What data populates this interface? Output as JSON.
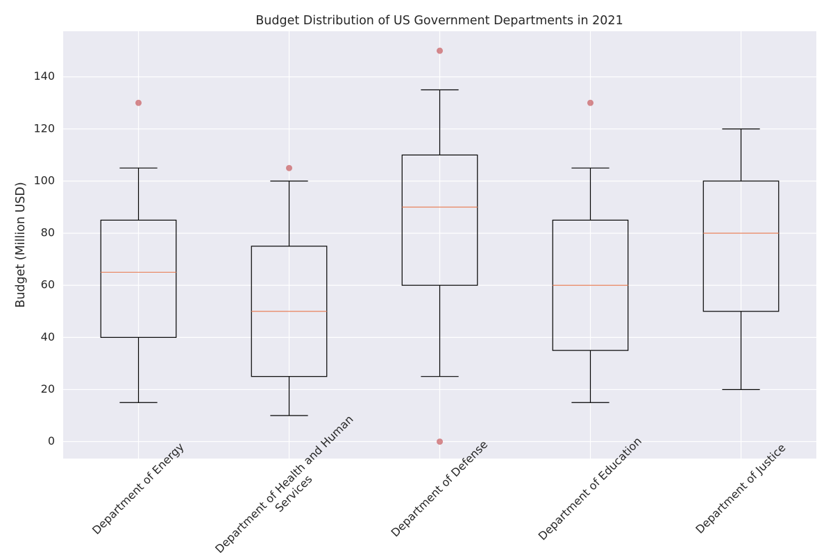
{
  "chart_data": {
    "type": "box",
    "title": "Budget Distribution of US Government Departments in 2021",
    "ylabel": "Budget (Million USD)",
    "categories": [
      "Department of Energy",
      "Department of Health and Human\nServices",
      "Department of Defense",
      "Department of Education",
      "Department of Justice"
    ],
    "boxes": [
      {
        "whislo": 15,
        "q1": 40,
        "med": 65,
        "q3": 85,
        "whishi": 105,
        "fliers": [
          130
        ]
      },
      {
        "whislo": 10,
        "q1": 25,
        "med": 50,
        "q3": 75,
        "whishi": 100,
        "fliers": [
          105
        ]
      },
      {
        "whislo": 25,
        "q1": 60,
        "med": 90,
        "q3": 110,
        "whishi": 135,
        "fliers": [
          150,
          0
        ]
      },
      {
        "whislo": 15,
        "q1": 35,
        "med": 60,
        "q3": 85,
        "whishi": 105,
        "fliers": [
          130
        ]
      },
      {
        "whislo": 20,
        "q1": 50,
        "med": 80,
        "q3": 100,
        "whishi": 120,
        "fliers": []
      }
    ],
    "box_color": "#000000",
    "median_color": "#e8825c",
    "flier_color": "#c44e52",
    "ylim": [
      -6.5,
      157.5
    ],
    "yticks": [
      0,
      20,
      40,
      60,
      80,
      100,
      120,
      140
    ],
    "grid": true
  }
}
